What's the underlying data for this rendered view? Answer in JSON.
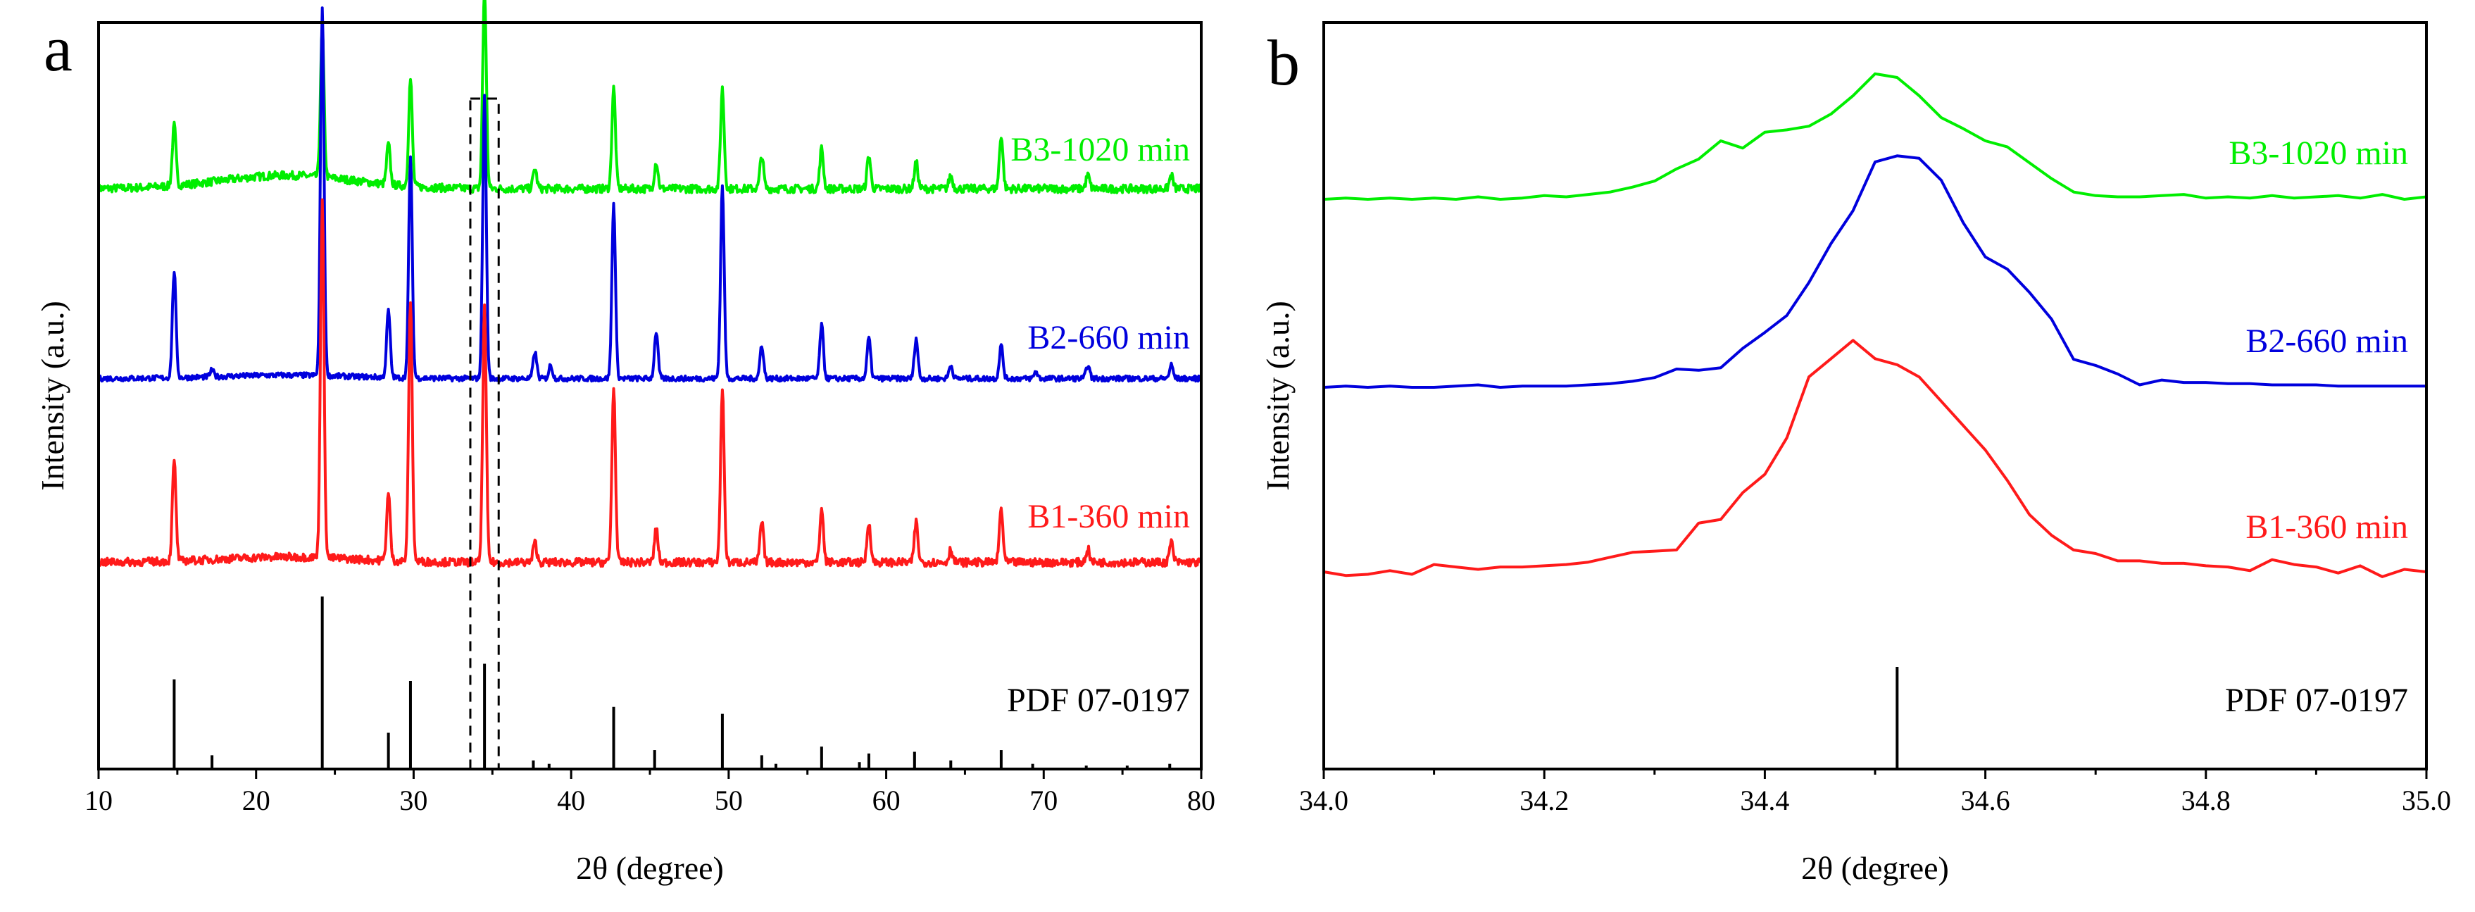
{
  "chart_data": [
    {
      "panel": "a",
      "type": "line",
      "xlabel": "2θ (degree)",
      "ylabel": "Intensity (a.u.)",
      "xlim": [
        10,
        80
      ],
      "xticks": [
        10,
        20,
        30,
        40,
        50,
        60,
        70,
        80
      ],
      "y_ticks_shown": false,
      "series": [
        {
          "name": "B3-1020 min",
          "color": "#00ee00",
          "baseline": 0.02,
          "noise": 0.006,
          "hump": {
            "center": 22,
            "width": 6,
            "height": 0.02
          },
          "peaks": [
            [
              14.8,
              0.09
            ],
            [
              24.2,
              0.22
            ],
            [
              28.4,
              0.06
            ],
            [
              29.8,
              0.16
            ],
            [
              34.5,
              0.3
            ],
            [
              37.7,
              0.03
            ],
            [
              42.7,
              0.15
            ],
            [
              45.4,
              0.04
            ],
            [
              49.6,
              0.15
            ],
            [
              52.1,
              0.05
            ],
            [
              55.9,
              0.06
            ],
            [
              58.9,
              0.05
            ],
            [
              61.9,
              0.04
            ],
            [
              64.1,
              0.02
            ],
            [
              67.3,
              0.08
            ],
            [
              72.8,
              0.02
            ],
            [
              78.1,
              0.02
            ]
          ]
        },
        {
          "name": "B2-660 min",
          "color": "#0000dd",
          "baseline": 0.01,
          "noise": 0.004,
          "hump": {
            "center": 22,
            "width": 6,
            "height": 0.005
          },
          "peaks": [
            [
              14.8,
              0.16
            ],
            [
              17.2,
              0.01
            ],
            [
              24.2,
              0.55
            ],
            [
              28.4,
              0.1
            ],
            [
              29.8,
              0.33
            ],
            [
              34.5,
              0.42
            ],
            [
              37.7,
              0.04
            ],
            [
              38.7,
              0.02
            ],
            [
              42.7,
              0.26
            ],
            [
              45.4,
              0.07
            ],
            [
              49.6,
              0.29
            ],
            [
              52.1,
              0.05
            ],
            [
              55.9,
              0.08
            ],
            [
              58.9,
              0.06
            ],
            [
              61.9,
              0.06
            ],
            [
              64.1,
              0.02
            ],
            [
              67.3,
              0.05
            ],
            [
              69.5,
              0.01
            ],
            [
              72.8,
              0.02
            ],
            [
              78.1,
              0.02
            ]
          ]
        },
        {
          "name": "B1-360 min",
          "color": "#ff1a1a",
          "baseline": 0.01,
          "noise": 0.006,
          "hump": {
            "center": 22,
            "width": 6,
            "height": 0.008
          },
          "peaks": [
            [
              14.8,
              0.15
            ],
            [
              24.2,
              0.53
            ],
            [
              28.4,
              0.1
            ],
            [
              29.8,
              0.39
            ],
            [
              34.5,
              0.38
            ],
            [
              37.7,
              0.03
            ],
            [
              42.7,
              0.26
            ],
            [
              45.4,
              0.05
            ],
            [
              49.6,
              0.26
            ],
            [
              52.1,
              0.06
            ],
            [
              55.9,
              0.08
            ],
            [
              58.9,
              0.06
            ],
            [
              61.9,
              0.06
            ],
            [
              64.1,
              0.02
            ],
            [
              67.3,
              0.08
            ],
            [
              72.8,
              0.02
            ],
            [
              78.1,
              0.03
            ]
          ]
        }
      ],
      "reference": {
        "name": "PDF 07-0197",
        "color": "#000000",
        "sticks": [
          [
            14.8,
            0.52
          ],
          [
            17.2,
            0.08
          ],
          [
            24.2,
            1.0
          ],
          [
            28.4,
            0.21
          ],
          [
            29.8,
            0.51
          ],
          [
            34.5,
            0.61
          ],
          [
            37.6,
            0.05
          ],
          [
            38.6,
            0.03
          ],
          [
            42.7,
            0.36
          ],
          [
            45.3,
            0.11
          ],
          [
            49.6,
            0.32
          ],
          [
            52.1,
            0.08
          ],
          [
            53.0,
            0.03
          ],
          [
            55.9,
            0.13
          ],
          [
            58.3,
            0.04
          ],
          [
            58.9,
            0.09
          ],
          [
            61.8,
            0.1
          ],
          [
            64.1,
            0.05
          ],
          [
            67.3,
            0.11
          ],
          [
            69.3,
            0.03
          ],
          [
            72.7,
            0.02
          ],
          [
            75.3,
            0.02
          ],
          [
            78.0,
            0.03
          ]
        ]
      },
      "highlight_box": {
        "x": [
          33.6,
          35.4
        ],
        "style": "dashed"
      }
    },
    {
      "panel": "b",
      "type": "line",
      "xlabel": "2θ (degree)",
      "ylabel": "Intensity (a.u.)",
      "xlim": [
        34.0,
        35.0
      ],
      "xticks": [
        "34.0",
        "34.2",
        "34.4",
        "34.6",
        "34.8",
        "35.0"
      ],
      "y_ticks_shown": false,
      "series": [
        {
          "name": "B3-1020 min",
          "color": "#00ee00",
          "points": [
            [
              34.0,
              0.0
            ],
            [
              34.02,
              0.001
            ],
            [
              34.04,
              0.0
            ],
            [
              34.06,
              0.001
            ],
            [
              34.08,
              0.0
            ],
            [
              34.1,
              0.001
            ],
            [
              34.12,
              0.0
            ],
            [
              34.14,
              0.002
            ],
            [
              34.16,
              0.0
            ],
            [
              34.18,
              0.001
            ],
            [
              34.2,
              0.003
            ],
            [
              34.22,
              0.002
            ],
            [
              34.24,
              0.004
            ],
            [
              34.26,
              0.006
            ],
            [
              34.28,
              0.01
            ],
            [
              34.3,
              0.015
            ],
            [
              34.32,
              0.025
            ],
            [
              34.34,
              0.033
            ],
            [
              34.36,
              0.048
            ],
            [
              34.38,
              0.042
            ],
            [
              34.4,
              0.055
            ],
            [
              34.42,
              0.057
            ],
            [
              34.44,
              0.06
            ],
            [
              34.46,
              0.07
            ],
            [
              34.48,
              0.085
            ],
            [
              34.5,
              0.103
            ],
            [
              34.52,
              0.1
            ],
            [
              34.54,
              0.085
            ],
            [
              34.56,
              0.067
            ],
            [
              34.58,
              0.058
            ],
            [
              34.6,
              0.048
            ],
            [
              34.62,
              0.043
            ],
            [
              34.64,
              0.03
            ],
            [
              34.66,
              0.017
            ],
            [
              34.68,
              0.006
            ],
            [
              34.7,
              0.003
            ],
            [
              34.72,
              0.002
            ],
            [
              34.74,
              0.002
            ],
            [
              34.76,
              0.003
            ],
            [
              34.78,
              0.004
            ],
            [
              34.8,
              0.001
            ],
            [
              34.82,
              0.002
            ],
            [
              34.84,
              0.001
            ],
            [
              34.86,
              0.003
            ],
            [
              34.88,
              0.001
            ],
            [
              34.9,
              0.002
            ],
            [
              34.92,
              0.003
            ],
            [
              34.94,
              0.001
            ],
            [
              34.96,
              0.004
            ],
            [
              34.98,
              0.0
            ],
            [
              35.0,
              0.002
            ]
          ]
        },
        {
          "name": "B2-660 min",
          "color": "#0000dd",
          "points": [
            [
              34.0,
              0.0
            ],
            [
              34.02,
              0.001
            ],
            [
              34.04,
              0.0
            ],
            [
              34.06,
              0.001
            ],
            [
              34.08,
              0.0
            ],
            [
              34.1,
              0.0
            ],
            [
              34.12,
              0.001
            ],
            [
              34.14,
              0.002
            ],
            [
              34.16,
              0.0
            ],
            [
              34.18,
              0.001
            ],
            [
              34.2,
              0.001
            ],
            [
              34.22,
              0.001
            ],
            [
              34.24,
              0.002
            ],
            [
              34.26,
              0.003
            ],
            [
              34.28,
              0.005
            ],
            [
              34.3,
              0.008
            ],
            [
              34.32,
              0.015
            ],
            [
              34.34,
              0.014
            ],
            [
              34.36,
              0.016
            ],
            [
              34.38,
              0.032
            ],
            [
              34.4,
              0.045
            ],
            [
              34.42,
              0.059
            ],
            [
              34.44,
              0.086
            ],
            [
              34.46,
              0.118
            ],
            [
              34.48,
              0.145
            ],
            [
              34.5,
              0.185
            ],
            [
              34.52,
              0.19
            ],
            [
              34.54,
              0.188
            ],
            [
              34.56,
              0.17
            ],
            [
              34.58,
              0.135
            ],
            [
              34.6,
              0.107
            ],
            [
              34.62,
              0.097
            ],
            [
              34.64,
              0.078
            ],
            [
              34.66,
              0.056
            ],
            [
              34.68,
              0.023
            ],
            [
              34.7,
              0.018
            ],
            [
              34.72,
              0.011
            ],
            [
              34.74,
              0.002
            ],
            [
              34.76,
              0.006
            ],
            [
              34.78,
              0.004
            ],
            [
              34.8,
              0.004
            ],
            [
              34.82,
              0.003
            ],
            [
              34.84,
              0.003
            ],
            [
              34.86,
              0.002
            ],
            [
              34.88,
              0.002
            ],
            [
              34.9,
              0.002
            ],
            [
              34.92,
              0.001
            ],
            [
              34.94,
              0.001
            ],
            [
              34.96,
              0.001
            ],
            [
              34.98,
              0.001
            ],
            [
              35.0,
              0.001
            ]
          ]
        },
        {
          "name": "B1-360 min",
          "color": "#ff1a1a",
          "points": [
            [
              34.0,
              0.0
            ],
            [
              34.02,
              -0.003
            ],
            [
              34.04,
              -0.002
            ],
            [
              34.06,
              0.001
            ],
            [
              34.08,
              -0.002
            ],
            [
              34.1,
              0.006
            ],
            [
              34.12,
              0.004
            ],
            [
              34.14,
              0.002
            ],
            [
              34.16,
              0.004
            ],
            [
              34.18,
              0.004
            ],
            [
              34.2,
              0.005
            ],
            [
              34.22,
              0.006
            ],
            [
              34.24,
              0.008
            ],
            [
              34.26,
              0.012
            ],
            [
              34.28,
              0.016
            ],
            [
              34.3,
              0.017
            ],
            [
              34.32,
              0.018
            ],
            [
              34.34,
              0.04
            ],
            [
              34.36,
              0.043
            ],
            [
              34.38,
              0.065
            ],
            [
              34.4,
              0.08
            ],
            [
              34.42,
              0.11
            ],
            [
              34.44,
              0.16
            ],
            [
              34.46,
              0.175
            ],
            [
              34.48,
              0.19
            ],
            [
              34.5,
              0.175
            ],
            [
              34.52,
              0.17
            ],
            [
              34.54,
              0.16
            ],
            [
              34.56,
              0.14
            ],
            [
              34.58,
              0.12
            ],
            [
              34.6,
              0.1
            ],
            [
              34.62,
              0.075
            ],
            [
              34.64,
              0.047
            ],
            [
              34.66,
              0.03
            ],
            [
              34.68,
              0.018
            ],
            [
              34.7,
              0.015
            ],
            [
              34.72,
              0.009
            ],
            [
              34.74,
              0.009
            ],
            [
              34.76,
              0.007
            ],
            [
              34.78,
              0.007
            ],
            [
              34.8,
              0.005
            ],
            [
              34.82,
              0.004
            ],
            [
              34.84,
              0.001
            ],
            [
              34.86,
              0.01
            ],
            [
              34.88,
              0.006
            ],
            [
              34.9,
              0.004
            ],
            [
              34.92,
              -0.001
            ],
            [
              34.94,
              0.005
            ],
            [
              34.96,
              -0.004
            ],
            [
              34.98,
              0.002
            ],
            [
              35.0,
              0.0
            ]
          ]
        }
      ],
      "reference": {
        "name": "PDF 07-0197",
        "color": "#000000",
        "sticks": [
          [
            34.52,
            1.0
          ]
        ]
      }
    }
  ],
  "panels": {
    "a": {
      "letter": "a"
    },
    "b": {
      "letter": "b"
    }
  }
}
